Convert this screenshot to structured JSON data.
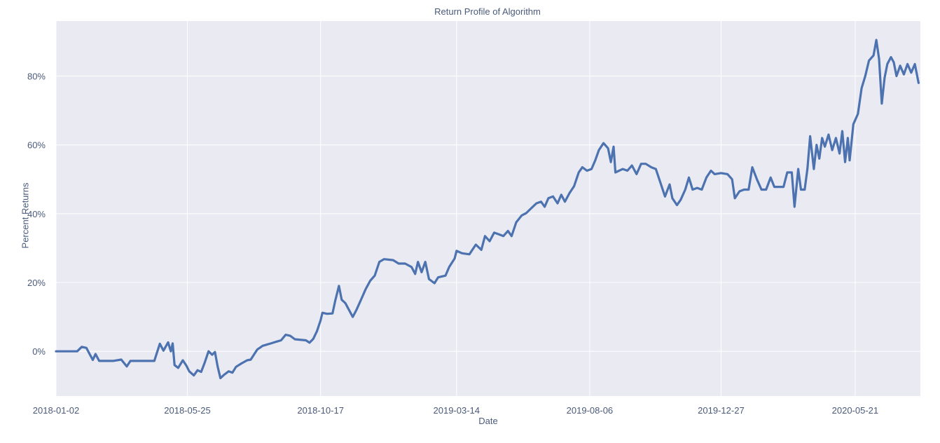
{
  "chart_data": {
    "type": "line",
    "title": "Return Profile of Algorithm",
    "xlabel": "Date",
    "ylabel": "Percent Returns",
    "x_tick_labels": [
      "2018-01-02",
      "2018-05-25",
      "2018-10-17",
      "2019-03-14",
      "2019-08-06",
      "2019-12-27",
      "2020-05-21"
    ],
    "y_tick_labels": [
      "0%",
      "20%",
      "40%",
      "60%",
      "80%"
    ],
    "y_ticks": [
      0,
      20,
      40,
      60,
      80
    ],
    "xlim": [
      "2018-01-02",
      "2020-07-31"
    ],
    "ylim": [
      -13,
      96
    ],
    "grid": true,
    "colors": {
      "background": "#eaeaf2",
      "grid": "#ffffff",
      "line": "#4c72b0",
      "text": "#4a5a7a"
    },
    "series": [
      {
        "points": [
          [
            "2018-01-02",
            0.0
          ],
          [
            "2018-01-25",
            0.0
          ],
          [
            "2018-01-30",
            1.3
          ],
          [
            "2018-02-04",
            1.0
          ],
          [
            "2018-02-08",
            -1.0
          ],
          [
            "2018-02-11",
            -2.5
          ],
          [
            "2018-02-14",
            -0.8
          ],
          [
            "2018-02-18",
            -2.8
          ],
          [
            "2018-03-05",
            -2.8
          ],
          [
            "2018-03-14",
            -2.4
          ],
          [
            "2018-03-20",
            -4.4
          ],
          [
            "2018-03-24",
            -2.8
          ],
          [
            "2018-04-19",
            -2.8
          ],
          [
            "2018-04-25",
            2.2
          ],
          [
            "2018-04-29",
            0.2
          ],
          [
            "2018-05-04",
            2.6
          ],
          [
            "2018-05-07",
            0.0
          ],
          [
            "2018-05-09",
            2.3
          ],
          [
            "2018-05-11",
            -4.0
          ],
          [
            "2018-05-15",
            -4.8
          ],
          [
            "2018-05-20",
            -2.6
          ],
          [
            "2018-05-24",
            -4.2
          ],
          [
            "2018-05-27",
            -5.8
          ],
          [
            "2018-06-01",
            -7.0
          ],
          [
            "2018-06-05",
            -5.5
          ],
          [
            "2018-06-09",
            -6.0
          ],
          [
            "2018-06-13",
            -3.2
          ],
          [
            "2018-06-17",
            0.0
          ],
          [
            "2018-06-21",
            -1.0
          ],
          [
            "2018-06-24",
            -0.2
          ],
          [
            "2018-06-27",
            -4.5
          ],
          [
            "2018-06-30",
            -7.8
          ],
          [
            "2018-07-04",
            -6.8
          ],
          [
            "2018-07-09",
            -5.8
          ],
          [
            "2018-07-13",
            -6.2
          ],
          [
            "2018-07-17",
            -4.5
          ],
          [
            "2018-07-23",
            -3.5
          ],
          [
            "2018-07-29",
            -2.6
          ],
          [
            "2018-08-02",
            -2.4
          ],
          [
            "2018-08-09",
            0.5
          ],
          [
            "2018-08-15",
            1.6
          ],
          [
            "2018-08-24",
            2.3
          ],
          [
            "2018-08-30",
            2.8
          ],
          [
            "2018-09-04",
            3.2
          ],
          [
            "2018-09-09",
            4.8
          ],
          [
            "2018-09-14",
            4.5
          ],
          [
            "2018-09-19",
            3.5
          ],
          [
            "2018-10-01",
            3.2
          ],
          [
            "2018-10-05",
            2.5
          ],
          [
            "2018-10-09",
            3.6
          ],
          [
            "2018-10-13",
            5.8
          ],
          [
            "2018-10-17",
            9.0
          ],
          [
            "2018-10-19",
            11.2
          ],
          [
            "2018-10-24",
            10.9
          ],
          [
            "2018-10-30",
            11.0
          ],
          [
            "2018-11-02",
            14.8
          ],
          [
            "2018-11-06",
            19.0
          ],
          [
            "2018-11-09",
            15.0
          ],
          [
            "2018-11-13",
            14.0
          ],
          [
            "2018-11-17",
            12.0
          ],
          [
            "2018-11-21",
            10.0
          ],
          [
            "2018-11-25",
            12.0
          ],
          [
            "2018-11-30",
            15.0
          ],
          [
            "2018-12-05",
            18.0
          ],
          [
            "2018-12-10",
            20.5
          ],
          [
            "2018-12-15",
            22.0
          ],
          [
            "2018-12-20",
            26.0
          ],
          [
            "2018-12-25",
            26.8
          ],
          [
            "2019-01-04",
            26.5
          ],
          [
            "2019-01-10",
            25.5
          ],
          [
            "2019-01-17",
            25.5
          ],
          [
            "2019-01-24",
            24.5
          ],
          [
            "2019-01-28",
            22.5
          ],
          [
            "2019-01-31",
            26.0
          ],
          [
            "2019-02-04",
            23.0
          ],
          [
            "2019-02-08",
            26.0
          ],
          [
            "2019-02-12",
            21.0
          ],
          [
            "2019-02-18",
            19.8
          ],
          [
            "2019-02-22",
            21.5
          ],
          [
            "2019-03-02",
            22.0
          ],
          [
            "2019-03-06",
            24.5
          ],
          [
            "2019-03-12",
            27.0
          ],
          [
            "2019-03-14",
            29.2
          ],
          [
            "2019-03-20",
            28.5
          ],
          [
            "2019-03-28",
            28.2
          ],
          [
            "2019-04-04",
            31.0
          ],
          [
            "2019-04-10",
            29.5
          ],
          [
            "2019-04-14",
            33.5
          ],
          [
            "2019-04-19",
            32.0
          ],
          [
            "2019-04-24",
            34.5
          ],
          [
            "2019-04-29",
            34.0
          ],
          [
            "2019-05-04",
            33.5
          ],
          [
            "2019-05-09",
            35.0
          ],
          [
            "2019-05-13",
            33.5
          ],
          [
            "2019-05-18",
            37.5
          ],
          [
            "2019-05-24",
            39.5
          ],
          [
            "2019-05-29",
            40.2
          ],
          [
            "2019-06-03",
            41.5
          ],
          [
            "2019-06-09",
            43.0
          ],
          [
            "2019-06-14",
            43.5
          ],
          [
            "2019-06-18",
            42.0
          ],
          [
            "2019-06-22",
            44.5
          ],
          [
            "2019-06-27",
            45.0
          ],
          [
            "2019-07-02",
            43.0
          ],
          [
            "2019-07-06",
            45.5
          ],
          [
            "2019-07-10",
            43.5
          ],
          [
            "2019-07-15",
            46.0
          ],
          [
            "2019-07-20",
            48.0
          ],
          [
            "2019-07-25",
            52.0
          ],
          [
            "2019-07-29",
            53.5
          ],
          [
            "2019-08-03",
            52.5
          ],
          [
            "2019-08-08",
            53.0
          ],
          [
            "2019-08-12",
            55.5
          ],
          [
            "2019-08-16",
            58.5
          ],
          [
            "2019-08-21",
            60.5
          ],
          [
            "2019-08-26",
            59.0
          ],
          [
            "2019-08-29",
            55.0
          ],
          [
            "2019-09-01",
            59.5
          ],
          [
            "2019-09-03",
            52.0
          ],
          [
            "2019-09-11",
            53.0
          ],
          [
            "2019-09-16",
            52.5
          ],
          [
            "2019-09-21",
            54.0
          ],
          [
            "2019-09-26",
            51.5
          ],
          [
            "2019-10-01",
            54.5
          ],
          [
            "2019-10-06",
            54.5
          ],
          [
            "2019-10-12",
            53.5
          ],
          [
            "2019-10-17",
            53.0
          ],
          [
            "2019-10-22",
            49.0
          ],
          [
            "2019-10-27",
            45.0
          ],
          [
            "2019-11-01",
            48.5
          ],
          [
            "2019-11-04",
            44.5
          ],
          [
            "2019-11-09",
            42.5
          ],
          [
            "2019-11-13",
            44.0
          ],
          [
            "2019-11-18",
            47.0
          ],
          [
            "2019-11-22",
            50.5
          ],
          [
            "2019-11-26",
            47.0
          ],
          [
            "2019-12-01",
            47.5
          ],
          [
            "2019-12-06",
            47.0
          ],
          [
            "2019-12-11",
            50.5
          ],
          [
            "2019-12-16",
            52.5
          ],
          [
            "2019-12-20",
            51.5
          ],
          [
            "2019-12-27",
            51.8
          ],
          [
            "2020-01-03",
            51.5
          ],
          [
            "2020-01-08",
            50.0
          ],
          [
            "2020-01-11",
            44.5
          ],
          [
            "2020-01-16",
            46.5
          ],
          [
            "2020-01-21",
            47.0
          ],
          [
            "2020-01-26",
            47.0
          ],
          [
            "2020-01-30",
            53.5
          ],
          [
            "2020-02-04",
            50.0
          ],
          [
            "2020-02-09",
            47.0
          ],
          [
            "2020-02-14",
            47.0
          ],
          [
            "2020-02-19",
            50.5
          ],
          [
            "2020-02-23",
            47.8
          ],
          [
            "2020-03-04",
            47.8
          ],
          [
            "2020-03-08",
            52.0
          ],
          [
            "2020-03-13",
            52.0
          ],
          [
            "2020-03-16",
            42.0
          ],
          [
            "2020-03-20",
            53.0
          ],
          [
            "2020-03-23",
            47.0
          ],
          [
            "2020-03-27",
            47.0
          ],
          [
            "2020-03-30",
            53.0
          ],
          [
            "2020-04-02",
            62.5
          ],
          [
            "2020-04-06",
            53.0
          ],
          [
            "2020-04-09",
            60.0
          ],
          [
            "2020-04-12",
            56.0
          ],
          [
            "2020-04-15",
            62.0
          ],
          [
            "2020-04-18",
            59.5
          ],
          [
            "2020-04-22",
            63.0
          ],
          [
            "2020-04-26",
            58.5
          ],
          [
            "2020-04-30",
            62.0
          ],
          [
            "2020-05-04",
            57.5
          ],
          [
            "2020-05-07",
            64.0
          ],
          [
            "2020-05-10",
            55.0
          ],
          [
            "2020-05-13",
            62.0
          ],
          [
            "2020-05-15",
            55.5
          ],
          [
            "2020-05-19",
            66.0
          ],
          [
            "2020-05-24",
            69.0
          ],
          [
            "2020-05-28",
            76.5
          ],
          [
            "2020-06-01",
            80.0
          ],
          [
            "2020-06-05",
            84.5
          ],
          [
            "2020-06-10",
            86.0
          ],
          [
            "2020-06-13",
            90.5
          ],
          [
            "2020-06-16",
            85.0
          ],
          [
            "2020-06-19",
            72.0
          ],
          [
            "2020-06-22",
            79.5
          ],
          [
            "2020-06-25",
            83.5
          ],
          [
            "2020-06-29",
            85.5
          ],
          [
            "2020-07-02",
            84.0
          ],
          [
            "2020-07-05",
            80.0
          ],
          [
            "2020-07-09",
            83.0
          ],
          [
            "2020-07-13",
            80.5
          ],
          [
            "2020-07-17",
            83.5
          ],
          [
            "2020-07-21",
            81.0
          ],
          [
            "2020-07-25",
            83.5
          ],
          [
            "2020-07-29",
            78.0
          ]
        ]
      }
    ]
  }
}
